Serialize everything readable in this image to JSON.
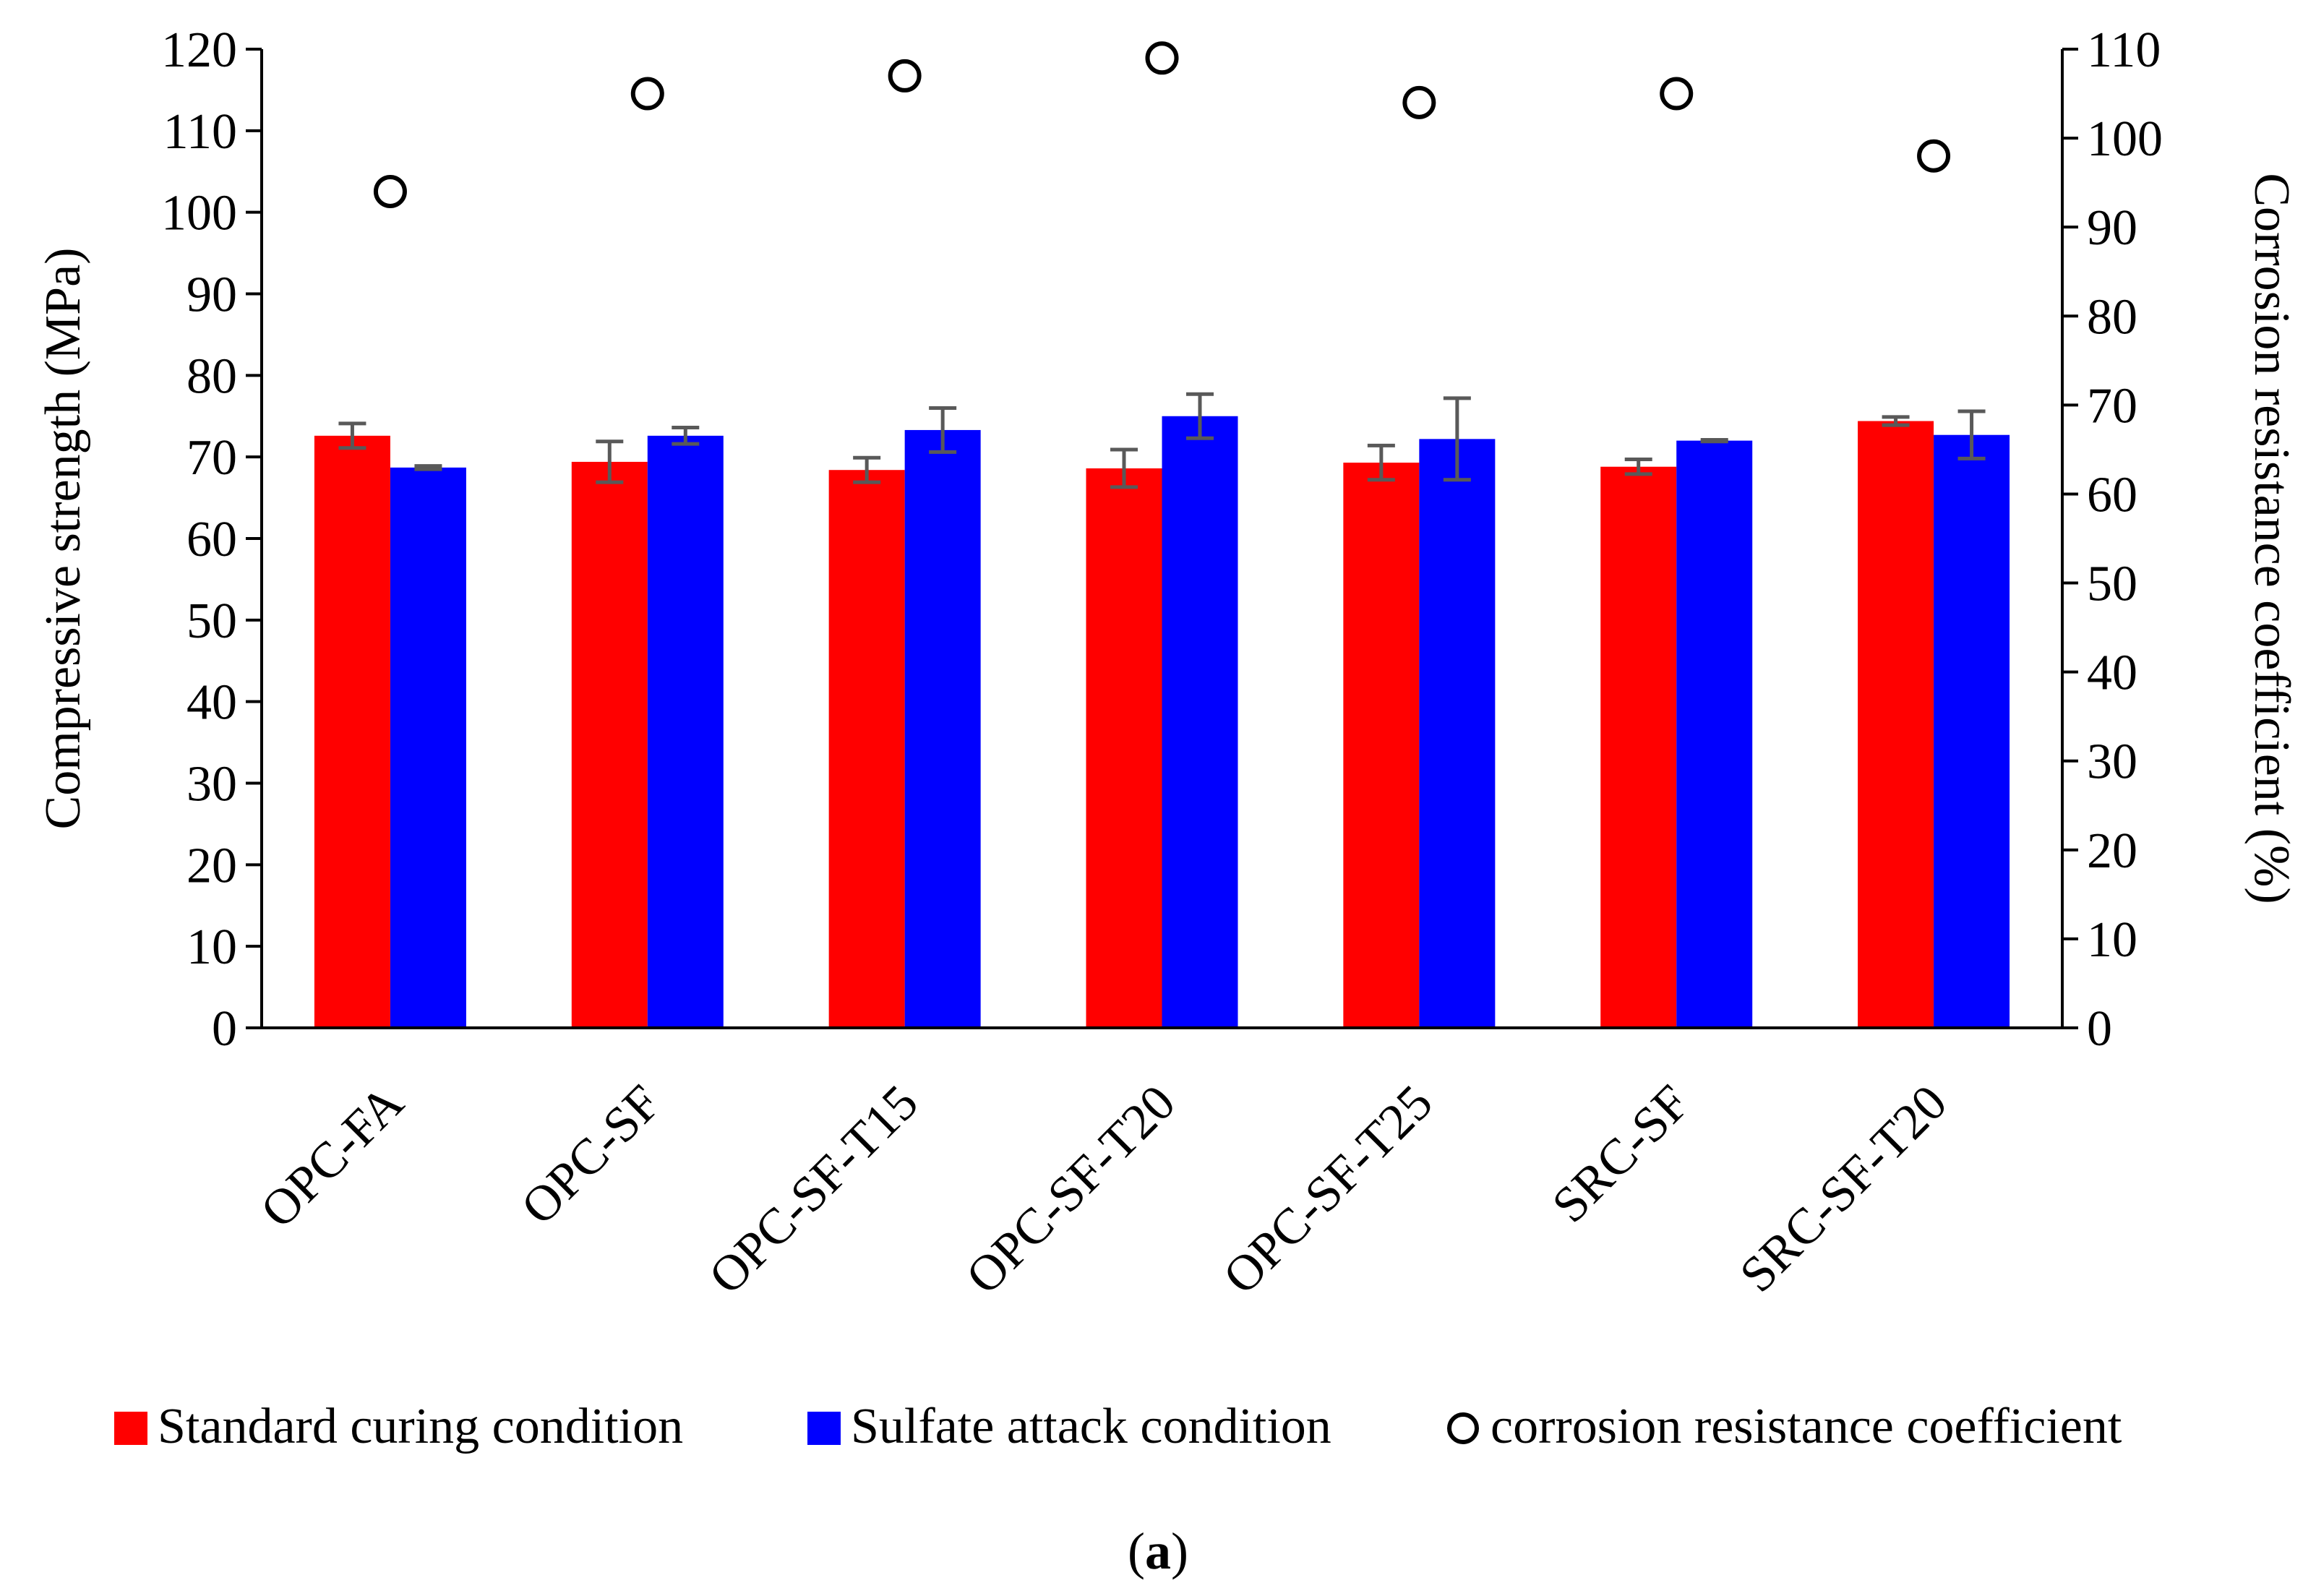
{
  "chart_data": {
    "type": "bar",
    "categories": [
      "OPC-FA",
      "OPC-SF",
      "OPC-SF-T15",
      "OPC-SF-T20",
      "OPC-SF-T25",
      "SRC-SF",
      "SRC-SF-T20"
    ],
    "series": [
      {
        "name": "Standard curing condition",
        "color": "#ff0000",
        "axis": "left",
        "values": [
          72.6,
          69.4,
          68.4,
          68.6,
          69.3,
          68.8,
          74.4
        ],
        "errors": [
          1.5,
          2.5,
          1.5,
          2.3,
          2.1,
          0.9,
          0.5
        ]
      },
      {
        "name": "Sulfate attack condition",
        "color": "#0000ff",
        "axis": "left",
        "values": [
          68.7,
          72.6,
          73.3,
          75.0,
          72.2,
          72.0,
          72.7
        ],
        "errors": [
          0.2,
          1.0,
          2.7,
          2.7,
          5.0,
          0.1,
          2.9
        ]
      },
      {
        "name": "corrosion resistance coefficient",
        "type": "scatter",
        "axis": "right",
        "values": [
          94,
          105,
          107,
          109,
          104,
          105,
          98
        ]
      }
    ],
    "ylabel": "Compressive strength (MPa)",
    "y2label": "Corrosion resistance coefficient (%)",
    "ylim": [
      0,
      120
    ],
    "y2lim": [
      0,
      110
    ],
    "yticks": [
      "0",
      "10",
      "20",
      "30",
      "40",
      "50",
      "60",
      "70",
      "80",
      "90",
      "100",
      "110",
      "120"
    ],
    "y2ticks": [
      "0",
      "10",
      "20",
      "30",
      "40",
      "50",
      "60",
      "70",
      "80",
      "90",
      "100",
      "110"
    ],
    "legend_position": "bottom",
    "caption_open": "(",
    "caption_letter": "a",
    "caption_close": ")"
  }
}
